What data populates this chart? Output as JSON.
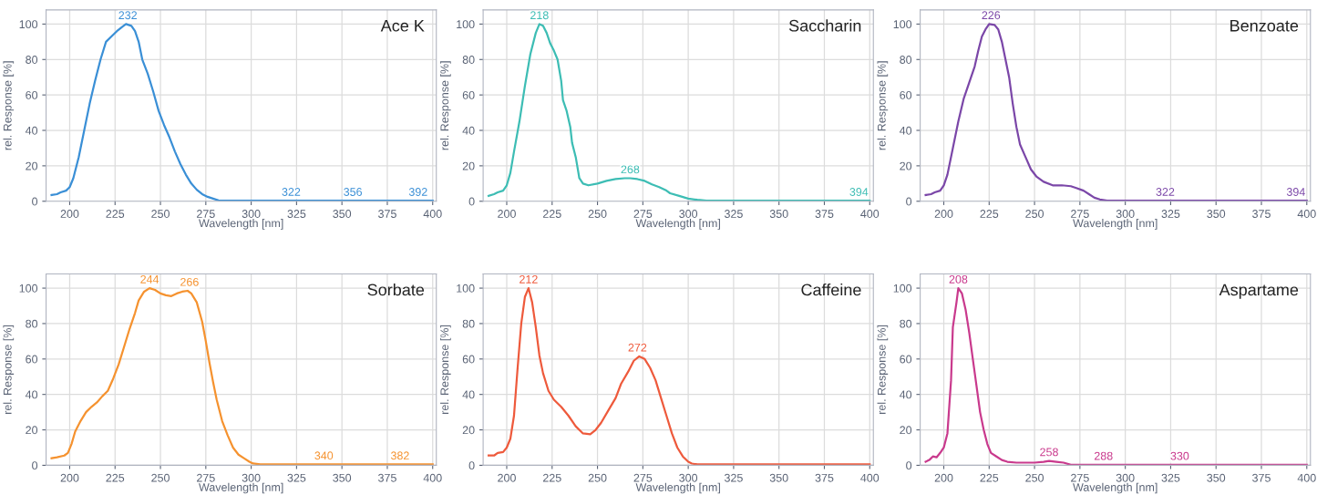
{
  "chart_data": [
    {
      "type": "line",
      "title": "Ace K",
      "xlabel": "Wavelength [nm]",
      "ylabel": "rel. Response [%]",
      "xlim": [
        187,
        402
      ],
      "ylim": [
        0,
        108
      ],
      "xticks": [
        200,
        225,
        250,
        275,
        300,
        325,
        350,
        375,
        400
      ],
      "yticks": [
        0,
        20,
        40,
        60,
        80,
        100
      ],
      "grid": true,
      "legend": false,
      "series": [
        {
          "color": "#3a8fd6",
          "x": [
            190,
            193,
            195,
            198,
            200,
            202,
            205,
            208,
            211,
            214,
            217,
            220,
            223,
            226,
            229,
            231,
            234,
            236,
            238,
            240,
            243,
            246,
            249,
            252,
            255,
            258,
            261,
            264,
            267,
            270,
            273,
            276,
            279,
            282,
            290,
            400
          ],
          "values": [
            3.5,
            4,
            5,
            6,
            8,
            13,
            25,
            40,
            55,
            68,
            80,
            90,
            93,
            96,
            98.5,
            100,
            99,
            96,
            90,
            80,
            72,
            62,
            51,
            43,
            36,
            28,
            21,
            15,
            10,
            6.5,
            4,
            2.5,
            1.5,
            0.5,
            0.3,
            0.3
          ]
        }
      ],
      "annotations": [
        {
          "text": "232",
          "x": 232,
          "y": 100
        },
        {
          "text": "322",
          "x": 322,
          "y": 0.3
        },
        {
          "text": "356",
          "x": 356,
          "y": 0.3
        },
        {
          "text": "392",
          "x": 392,
          "y": 0.3
        }
      ]
    },
    {
      "type": "line",
      "title": "Saccharin",
      "xlabel": "Wavelength [nm]",
      "ylabel": "rel. Response [%]",
      "xlim": [
        187,
        402
      ],
      "ylim": [
        0,
        108
      ],
      "xticks": [
        200,
        225,
        250,
        275,
        300,
        325,
        350,
        375,
        400
      ],
      "yticks": [
        0,
        20,
        40,
        60,
        80,
        100
      ],
      "grid": true,
      "legend": false,
      "series": [
        {
          "color": "#3dbdb4",
          "x": [
            190,
            193,
            195,
            198,
            200,
            202,
            204,
            207,
            210,
            213,
            216,
            218,
            220,
            222,
            224,
            226,
            228,
            230,
            231,
            233,
            235,
            236,
            238,
            240,
            242,
            245,
            250,
            255,
            260,
            265,
            268,
            272,
            276,
            280,
            284,
            288,
            290,
            295,
            300,
            305,
            310,
            400
          ],
          "values": [
            3,
            4,
            5,
            6,
            9,
            16,
            28,
            45,
            65,
            83,
            95,
            100,
            99,
            95,
            89,
            85,
            80,
            68,
            57,
            51,
            42,
            33,
            25,
            13,
            10,
            9,
            10,
            11.5,
            12.5,
            13,
            13,
            12.5,
            11.5,
            9.5,
            8,
            6,
            4.5,
            3,
            1.5,
            0.8,
            0.3,
            0.3
          ]
        }
      ],
      "annotations": [
        {
          "text": "218",
          "x": 218,
          "y": 100
        },
        {
          "text": "268",
          "x": 268,
          "y": 13
        },
        {
          "text": "394",
          "x": 394,
          "y": 0.3
        }
      ]
    },
    {
      "type": "line",
      "title": "Benzoate",
      "xlabel": "Wavelength [nm]",
      "ylabel": "rel. Response [%]",
      "xlim": [
        187,
        402
      ],
      "ylim": [
        0,
        108
      ],
      "xticks": [
        200,
        225,
        250,
        275,
        300,
        325,
        350,
        375,
        400
      ],
      "yticks": [
        0,
        20,
        40,
        60,
        80,
        100
      ],
      "grid": true,
      "legend": false,
      "series": [
        {
          "color": "#7b47a8",
          "x": [
            190,
            193,
            195,
            198,
            200,
            202,
            205,
            208,
            211,
            214,
            217,
            219,
            221,
            223,
            225,
            228,
            230,
            232,
            234,
            236,
            238,
            240,
            242,
            245,
            248,
            251,
            255,
            260,
            265,
            270,
            273,
            277,
            280,
            283,
            286,
            290,
            400
          ],
          "values": [
            3.5,
            4,
            5,
            6,
            9,
            15,
            30,
            45,
            58,
            67,
            76,
            85,
            93,
            97,
            100,
            99.5,
            97,
            90,
            80,
            70,
            55,
            42,
            32,
            25,
            18,
            14,
            11,
            9,
            9,
            8.5,
            7.5,
            6,
            4,
            2,
            1,
            0.3,
            0.3
          ]
        }
      ],
      "annotations": [
        {
          "text": "226",
          "x": 226,
          "y": 100
        },
        {
          "text": "322",
          "x": 322,
          "y": 0.3
        },
        {
          "text": "394",
          "x": 394,
          "y": 0.3
        }
      ]
    },
    {
      "type": "line",
      "title": "Sorbate",
      "xlabel": "Wavelength [nm]",
      "ylabel": "rel. Response [%]",
      "xlim": [
        187,
        402
      ],
      "ylim": [
        0,
        108
      ],
      "xticks": [
        200,
        225,
        250,
        275,
        300,
        325,
        350,
        375,
        400
      ],
      "yticks": [
        0,
        20,
        40,
        60,
        80,
        100
      ],
      "grid": true,
      "legend": false,
      "series": [
        {
          "color": "#f5922f",
          "x": [
            190,
            193,
            197,
            199,
            201,
            203,
            206,
            209,
            212,
            215,
            218,
            221,
            224,
            227,
            230,
            233,
            236,
            238,
            241,
            244,
            247,
            250,
            253,
            256,
            259,
            262,
            265,
            267,
            270,
            273,
            275,
            277,
            279,
            281,
            284,
            287,
            290,
            293,
            296,
            299,
            301,
            305,
            400
          ],
          "values": [
            4,
            4.5,
            5.5,
            7,
            12,
            19,
            25,
            30,
            33,
            35.5,
            39,
            42,
            49,
            57,
            67,
            77,
            86,
            93,
            98,
            100,
            99,
            97,
            96,
            95.5,
            97,
            98,
            98.5,
            97,
            92,
            81,
            70,
            58,
            47,
            37,
            25,
            17,
            10,
            6,
            4,
            2,
            1,
            0.5,
            0.5
          ]
        }
      ],
      "annotations": [
        {
          "text": "244",
          "x": 244,
          "y": 100
        },
        {
          "text": "266",
          "x": 266,
          "y": 98.5
        },
        {
          "text": "340",
          "x": 340,
          "y": 0.5
        },
        {
          "text": "382",
          "x": 382,
          "y": 0.5
        }
      ]
    },
    {
      "type": "line",
      "title": "Caffeine",
      "xlabel": "Wavelength [nm]",
      "ylabel": "rel. Response [%]",
      "xlim": [
        187,
        402
      ],
      "ylim": [
        0,
        108
      ],
      "xticks": [
        200,
        225,
        250,
        275,
        300,
        325,
        350,
        375,
        400
      ],
      "yticks": [
        0,
        20,
        40,
        60,
        80,
        100
      ],
      "grid": true,
      "legend": false,
      "series": [
        {
          "color": "#ee5a3c",
          "x": [
            190,
            193,
            195,
            198,
            200,
            202,
            204,
            206,
            208,
            210,
            212,
            214,
            216,
            218,
            220,
            223,
            226,
            230,
            234,
            238,
            242,
            246,
            249,
            252,
            256,
            260,
            263,
            267,
            270,
            273,
            276,
            279,
            282,
            285,
            288,
            291,
            294,
            297,
            300,
            302,
            305,
            400
          ],
          "values": [
            5.5,
            5.5,
            7,
            7.5,
            10,
            15,
            28,
            55,
            80,
            95,
            100,
            92,
            78,
            62,
            52,
            42,
            37,
            33,
            28,
            22,
            18,
            17.5,
            20,
            24,
            31,
            38,
            46,
            53,
            59,
            61.5,
            60,
            55,
            48,
            38,
            28,
            18,
            10,
            5,
            2,
            1,
            0.5,
            0.5
          ]
        }
      ],
      "annotations": [
        {
          "text": "212",
          "x": 212,
          "y": 100
        },
        {
          "text": "272",
          "x": 272,
          "y": 61.5
        }
      ]
    },
    {
      "type": "line",
      "title": "Aspartame",
      "xlabel": "Wavelength [nm]",
      "ylabel": "rel. Response [%]",
      "xlim": [
        187,
        402
      ],
      "ylim": [
        0,
        108
      ],
      "xticks": [
        200,
        225,
        250,
        275,
        300,
        325,
        350,
        375,
        400
      ],
      "yticks": [
        0,
        20,
        40,
        60,
        80,
        100
      ],
      "grid": true,
      "legend": false,
      "series": [
        {
          "color": "#c93a8d",
          "x": [
            190,
            192,
            194,
            196,
            198,
            200,
            202,
            204,
            205,
            207,
            208,
            210,
            212,
            214,
            216,
            218,
            220,
            222,
            224,
            226,
            229,
            232,
            235,
            240,
            250,
            255,
            258,
            262,
            266,
            270,
            400
          ],
          "values": [
            2,
            3,
            5,
            4.5,
            7,
            10,
            18,
            48,
            78,
            92,
            100,
            97,
            88,
            75,
            60,
            45,
            30,
            20,
            12,
            7,
            5,
            3,
            2,
            1.5,
            1.5,
            2,
            2.5,
            2,
            1.5,
            0.3,
            0.3
          ]
        }
      ],
      "annotations": [
        {
          "text": "208",
          "x": 208,
          "y": 100
        },
        {
          "text": "258",
          "x": 258,
          "y": 2.5
        },
        {
          "text": "288",
          "x": 288,
          "y": 0.3
        },
        {
          "text": "330",
          "x": 330,
          "y": 0.3
        }
      ]
    }
  ]
}
